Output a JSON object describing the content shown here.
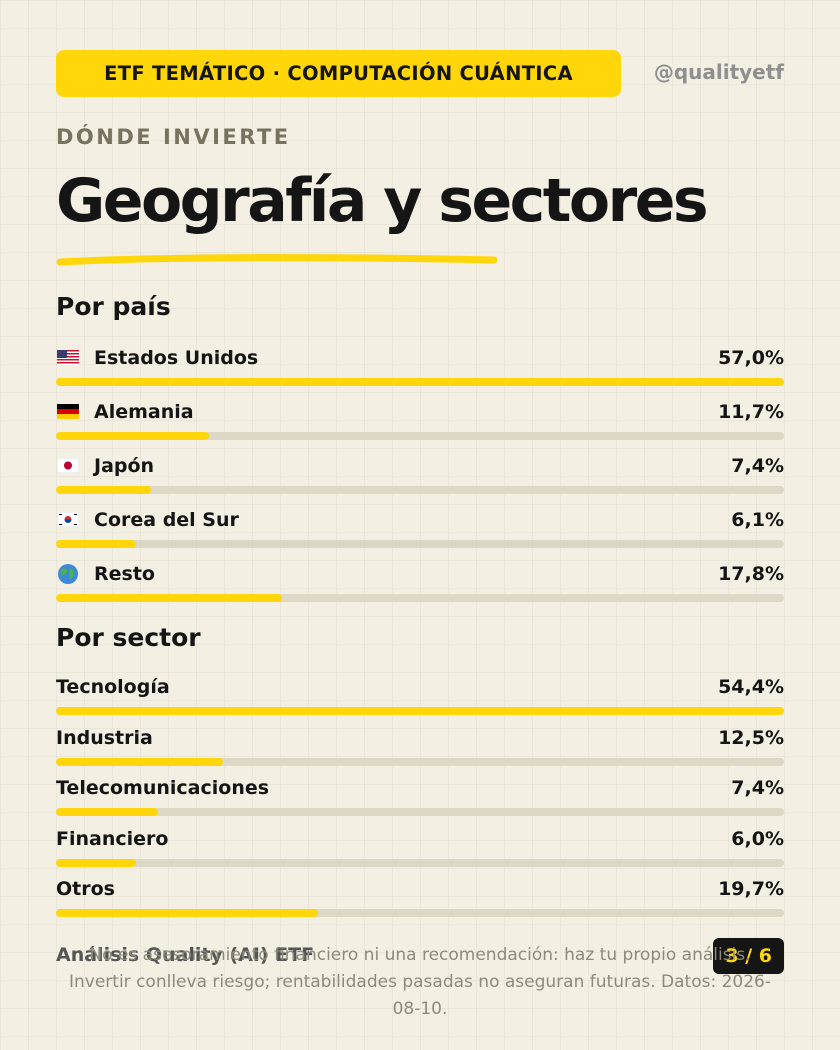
{
  "header": {
    "tag": "ETF TEMÁTICO · COMPUTACIÓN CUÁNTICA",
    "handle": "@qualityetf"
  },
  "kicker": "DÓNDE INVIERTE",
  "title": "Geografía y sectores",
  "colors": {
    "accent": "#ffd60a",
    "background": "#f3efe2",
    "track": "#ddd7c6",
    "text": "#151515"
  },
  "countries": {
    "title": "Por país",
    "items": [
      {
        "label": "Estados Unidos",
        "value": "57,0%",
        "share": 1.0,
        "icon": "us-flag-icon"
      },
      {
        "label": "Alemania",
        "value": "11,7%",
        "share": 0.21,
        "icon": "germany-flag-icon"
      },
      {
        "label": "Japón",
        "value": "7,4%",
        "share": 0.13,
        "icon": "japan-flag-icon"
      },
      {
        "label": "Corea del Sur",
        "value": "6,1%",
        "share": 0.11,
        "icon": "south-korea-flag-icon"
      },
      {
        "label": "Resto",
        "value": "17,8%",
        "share": 0.31,
        "icon": "globe-icon"
      }
    ]
  },
  "sectors": {
    "title": "Por sector",
    "items": [
      {
        "label": "Tecnología",
        "value": "54,4%",
        "share": 1.0
      },
      {
        "label": "Industria",
        "value": "12,5%",
        "share": 0.23
      },
      {
        "label": "Telecomunicaciones",
        "value": "7,4%",
        "share": 0.14
      },
      {
        "label": "Financiero",
        "value": "6,0%",
        "share": 0.11
      },
      {
        "label": "Otros",
        "value": "19,7%",
        "share": 0.36
      }
    ]
  },
  "footer": {
    "brand": "Análisis Quality (AI) ETF",
    "page": "3 / 6",
    "disclaimer": "No es asesoramiento financiero ni una recomendación: haz tu propio análisis. Invertir conlleva riesgo; rentabilidades pasadas no aseguran futuras. Datos: 2026-08-10."
  }
}
